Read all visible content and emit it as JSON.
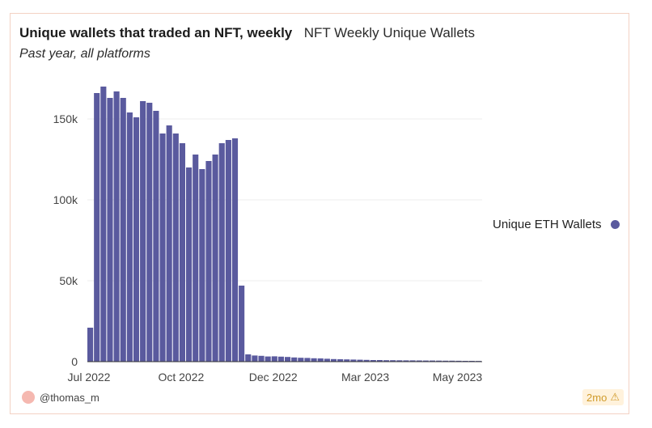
{
  "header": {
    "title": "Unique wallets that traded an NFT, weekly",
    "subtitle_inline": "NFT Weekly Unique Wallets",
    "subtitle": "Past year, all platforms"
  },
  "legend": {
    "label": "Unique ETH Wallets",
    "color": "#5a5a9e"
  },
  "footer": {
    "author": "@thomas_m",
    "age": "2mo",
    "age_icon": "warning-icon"
  },
  "chart_data": {
    "type": "bar",
    "title": "Unique wallets that traded an NFT, weekly",
    "subtitle": "Past year, all platforms",
    "xlabel": "",
    "ylabel": "",
    "ylim": [
      0,
      175000
    ],
    "yticks": [
      0,
      50000,
      100000,
      150000
    ],
    "ytick_labels": [
      "0",
      "50k",
      "100k",
      "150k"
    ],
    "xticks": [
      {
        "label": "Jul 2022",
        "index": 0
      },
      {
        "label": "Oct 2022",
        "index": 14
      },
      {
        "label": "Dec 2022",
        "index": 28
      },
      {
        "label": "Mar 2023",
        "index": 42
      },
      {
        "label": "May 2023",
        "index": 56
      }
    ],
    "grid": true,
    "legend_position": "right",
    "series": [
      {
        "name": "Unique ETH Wallets",
        "color": "#5a5a9e",
        "values": [
          21000,
          166000,
          170000,
          163000,
          167000,
          163000,
          154000,
          151000,
          161000,
          160000,
          155000,
          141000,
          146000,
          141000,
          135000,
          120000,
          128000,
          119000,
          124000,
          128000,
          135000,
          137000,
          138000,
          47000,
          4500,
          3800,
          3600,
          3200,
          3300,
          3100,
          2900,
          2600,
          2400,
          2300,
          2100,
          2000,
          1800,
          1600,
          1500,
          1400,
          1300,
          1200,
          1100,
          1000,
          1000,
          900,
          900,
          850,
          800,
          800,
          750,
          700,
          700,
          650,
          600,
          600,
          550,
          500,
          500,
          450
        ]
      }
    ]
  }
}
